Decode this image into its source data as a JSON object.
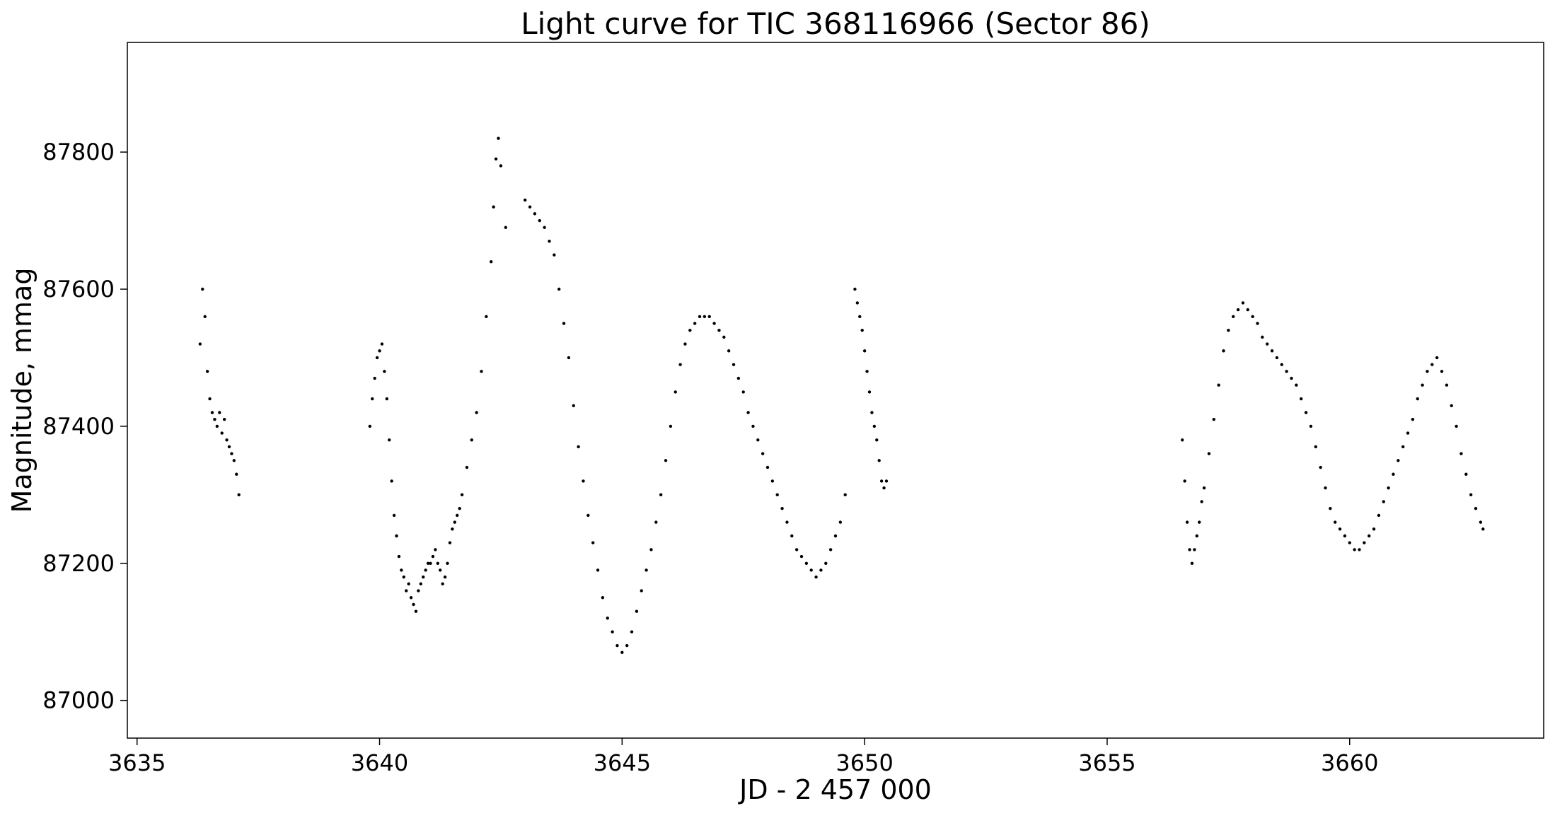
{
  "chart_data": {
    "type": "scatter",
    "title": "Light curve for TIC 368116966 (Sector 86)",
    "xlabel": "JD - 2 457 000",
    "ylabel": "Magnitude, mmag",
    "xlim": [
      3634.8,
      3664.0
    ],
    "ylim": [
      86945,
      87960
    ],
    "xticks": [
      3635,
      3640,
      3645,
      3650,
      3655,
      3660
    ],
    "yticks": [
      87000,
      87200,
      87400,
      87600,
      87800
    ],
    "xtick_labels": [
      "3635",
      "3640",
      "3645",
      "3650",
      "3655",
      "3660"
    ],
    "ytick_labels": [
      "87000",
      "87200",
      "87400",
      "87600",
      "87800"
    ],
    "grid": false,
    "marker_color": "#000000",
    "series": [
      {
        "x": [
          3636.3,
          3636.35,
          3636.4,
          3636.45,
          3636.5,
          3636.55,
          3636.6,
          3636.65,
          3636.7,
          3636.75,
          3636.8,
          3636.85,
          3636.9,
          3636.95,
          3637.0,
          3637.05,
          3637.1,
          3639.8,
          3639.85,
          3639.9,
          3639.95,
          3640.0,
          3640.05,
          3640.1,
          3640.15,
          3640.2,
          3640.25,
          3640.3,
          3640.35,
          3640.4,
          3640.45,
          3640.5,
          3640.55,
          3640.6,
          3640.65,
          3640.7,
          3640.75,
          3640.8,
          3640.85,
          3640.9,
          3640.95,
          3641.0,
          3641.05,
          3641.1,
          3641.15,
          3641.2,
          3641.25,
          3641.3,
          3641.35,
          3641.4,
          3641.45,
          3641.5,
          3641.55,
          3641.6,
          3641.65,
          3641.7,
          3641.8,
          3641.9,
          3642.0,
          3642.1,
          3642.2,
          3642.3,
          3642.35,
          3642.4,
          3642.45,
          3642.5,
          3642.6,
          3643.0,
          3643.1,
          3643.2,
          3643.3,
          3643.4,
          3643.5,
          3643.6,
          3643.7,
          3643.8,
          3643.9,
          3644.0,
          3644.1,
          3644.2,
          3644.3,
          3644.4,
          3644.5,
          3644.6,
          3644.7,
          3644.8,
          3644.9,
          3645.0,
          3645.1,
          3645.2,
          3645.3,
          3645.4,
          3645.5,
          3645.6,
          3645.7,
          3645.8,
          3645.9,
          3646.0,
          3646.1,
          3646.2,
          3646.3,
          3646.4,
          3646.5,
          3646.6,
          3646.7,
          3646.8,
          3646.9,
          3647.0,
          3647.1,
          3647.2,
          3647.3,
          3647.4,
          3647.5,
          3647.6,
          3647.7,
          3647.8,
          3647.9,
          3648.0,
          3648.1,
          3648.2,
          3648.3,
          3648.4,
          3648.5,
          3648.6,
          3648.7,
          3648.8,
          3648.9,
          3649.0,
          3649.1,
          3649.2,
          3649.3,
          3649.4,
          3649.5,
          3649.6,
          3649.8,
          3649.85,
          3649.9,
          3649.95,
          3650.0,
          3650.05,
          3650.1,
          3650.15,
          3650.2,
          3650.25,
          3650.3,
          3650.35,
          3650.4,
          3650.45,
          3656.55,
          3656.6,
          3656.65,
          3656.7,
          3656.75,
          3656.8,
          3656.85,
          3656.9,
          3656.95,
          3657.0,
          3657.1,
          3657.2,
          3657.3,
          3657.4,
          3657.5,
          3657.6,
          3657.7,
          3657.8,
          3657.9,
          3658.0,
          3658.1,
          3658.2,
          3658.3,
          3658.4,
          3658.5,
          3658.6,
          3658.7,
          3658.8,
          3658.9,
          3659.0,
          3659.1,
          3659.2,
          3659.3,
          3659.4,
          3659.5,
          3659.6,
          3659.7,
          3659.8,
          3659.9,
          3660.0,
          3660.1,
          3660.2,
          3660.3,
          3660.4,
          3660.5,
          3660.6,
          3660.7,
          3660.8,
          3660.9,
          3661.0,
          3661.1,
          3661.2,
          3661.3,
          3661.4,
          3661.5,
          3661.6,
          3661.7,
          3661.8,
          3661.9,
          3662.0,
          3662.1,
          3662.2,
          3662.3,
          3662.4,
          3662.5,
          3662.6,
          3662.7,
          3662.75
        ],
        "y": [
          87520,
          87600,
          87560,
          87480,
          87440,
          87420,
          87410,
          87400,
          87420,
          87390,
          87410,
          87380,
          87370,
          87360,
          87350,
          87330,
          87300,
          87400,
          87440,
          87470,
          87500,
          87510,
          87520,
          87480,
          87440,
          87380,
          87320,
          87270,
          87240,
          87210,
          87190,
          87180,
          87160,
          87170,
          87150,
          87140,
          87130,
          87160,
          87170,
          87180,
          87190,
          87200,
          87200,
          87210,
          87220,
          87200,
          87190,
          87170,
          87180,
          87200,
          87230,
          87250,
          87260,
          87270,
          87280,
          87300,
          87340,
          87380,
          87420,
          87480,
          87560,
          87640,
          87720,
          87790,
          87820,
          87780,
          87690,
          87730,
          87720,
          87710,
          87700,
          87690,
          87670,
          87650,
          87600,
          87550,
          87500,
          87430,
          87370,
          87320,
          87270,
          87230,
          87190,
          87150,
          87120,
          87100,
          87080,
          87070,
          87080,
          87100,
          87130,
          87160,
          87190,
          87220,
          87260,
          87300,
          87350,
          87400,
          87450,
          87490,
          87520,
          87540,
          87550,
          87560,
          87560,
          87560,
          87550,
          87540,
          87530,
          87510,
          87490,
          87470,
          87450,
          87420,
          87400,
          87380,
          87360,
          87340,
          87320,
          87300,
          87280,
          87260,
          87240,
          87220,
          87210,
          87200,
          87190,
          87180,
          87190,
          87200,
          87220,
          87240,
          87260,
          87300,
          87600,
          87580,
          87560,
          87540,
          87510,
          87480,
          87450,
          87420,
          87400,
          87380,
          87350,
          87320,
          87310,
          87320,
          87380,
          87320,
          87260,
          87220,
          87200,
          87220,
          87240,
          87260,
          87290,
          87310,
          87360,
          87410,
          87460,
          87510,
          87540,
          87560,
          87570,
          87580,
          87570,
          87560,
          87550,
          87530,
          87520,
          87510,
          87500,
          87490,
          87480,
          87470,
          87460,
          87440,
          87420,
          87400,
          87370,
          87340,
          87310,
          87280,
          87260,
          87250,
          87240,
          87230,
          87220,
          87220,
          87230,
          87240,
          87250,
          87270,
          87290,
          87310,
          87330,
          87350,
          87370,
          87390,
          87410,
          87440,
          87460,
          87480,
          87490,
          87500,
          87480,
          87460,
          87430,
          87400,
          87360,
          87330,
          87300,
          87280,
          87260,
          87250
        ]
      }
    ]
  }
}
